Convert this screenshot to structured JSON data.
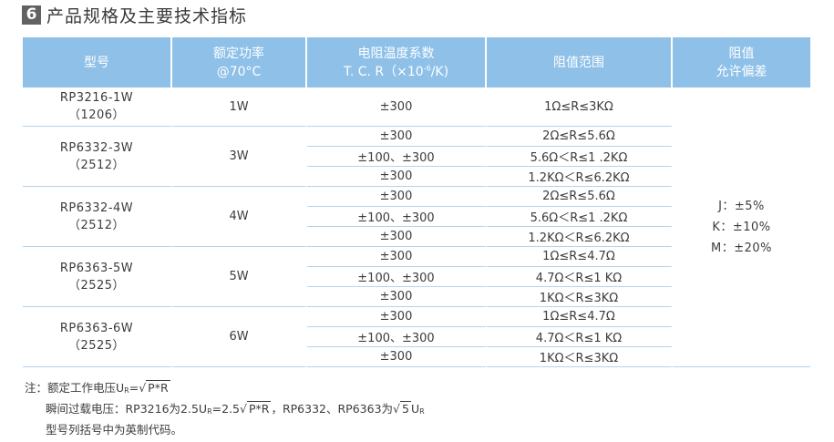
{
  "section": {
    "number": "6",
    "title": "产品规格及主要技术指标"
  },
  "table": {
    "headers": {
      "model": "型号",
      "power_l1": "额定功率",
      "power_l2": "@70°C",
      "tcr_l1": "电阻温度系数",
      "tcr_l2_pre": "T. C. R（×10",
      "tcr_l2_exp": "-6",
      "tcr_l2_post": "/K)",
      "range": "阻值范围",
      "tol_l1": "阻值",
      "tol_l2": "允许偏差"
    },
    "groups": [
      {
        "model": "RP3216-1W",
        "package": "（1206）",
        "power": "1W",
        "rows": [
          {
            "tcr": "±300",
            "range": "1Ω≤R≤3KΩ"
          }
        ]
      },
      {
        "model": "RP6332-3W",
        "package": "（2512）",
        "power": "3W",
        "rows": [
          {
            "tcr": "±300",
            "range": "2Ω≤R≤5.6Ω"
          },
          {
            "tcr": "±100、±300",
            "range": "5.6Ω＜R≤1 .2KΩ"
          },
          {
            "tcr": "±300",
            "range": "1.2KΩ＜R≤6.2KΩ"
          }
        ]
      },
      {
        "model": "RP6332-4W",
        "package": "（2512）",
        "power": "4W",
        "rows": [
          {
            "tcr": "±300",
            "range": "2Ω≤R≤5.6Ω"
          },
          {
            "tcr": "±100、±300",
            "range": "5.6Ω＜R≤1 .2KΩ"
          },
          {
            "tcr": "±300",
            "range": "1.2KΩ＜R≤6.2KΩ"
          }
        ]
      },
      {
        "model": "RP6363-5W",
        "package": "（2525）",
        "power": "5W",
        "rows": [
          {
            "tcr": "±300",
            "range": "1Ω≤R≤4.7Ω"
          },
          {
            "tcr": "±100、±300",
            "range": "4.7Ω＜R≤1 KΩ"
          },
          {
            "tcr": "±300",
            "range": "1KΩ＜R≤3KΩ"
          }
        ]
      },
      {
        "model": "RP6363-6W",
        "package": "（2525）",
        "power": "6W",
        "rows": [
          {
            "tcr": "±300",
            "range": "1Ω≤R≤4.7Ω"
          },
          {
            "tcr": "±100、±300",
            "range": "4.7Ω＜R≤1 KΩ"
          },
          {
            "tcr": "±300",
            "range": "1KΩ＜R≤3KΩ"
          }
        ]
      }
    ],
    "tolerance": [
      "J：±5%",
      "K：±10%",
      "M：±20%"
    ]
  },
  "notes": {
    "line1_pre": "注：额定工作电压U",
    "line1_sub": "R",
    "line1_eq": "=√",
    "line1_rad": "P*R",
    "line2_pre": "瞬间过载电压：RP3216为2.5U",
    "line2_sub1": "R",
    "line2_mid": "=2.5√",
    "line2_rad": "P*R",
    "line2_post": "，RP6332、RP6363为√",
    "line2_rad2": "5",
    "line2_u": "U",
    "line2_sub2": "R",
    "line3": "型号列括号中为英制代码。"
  }
}
